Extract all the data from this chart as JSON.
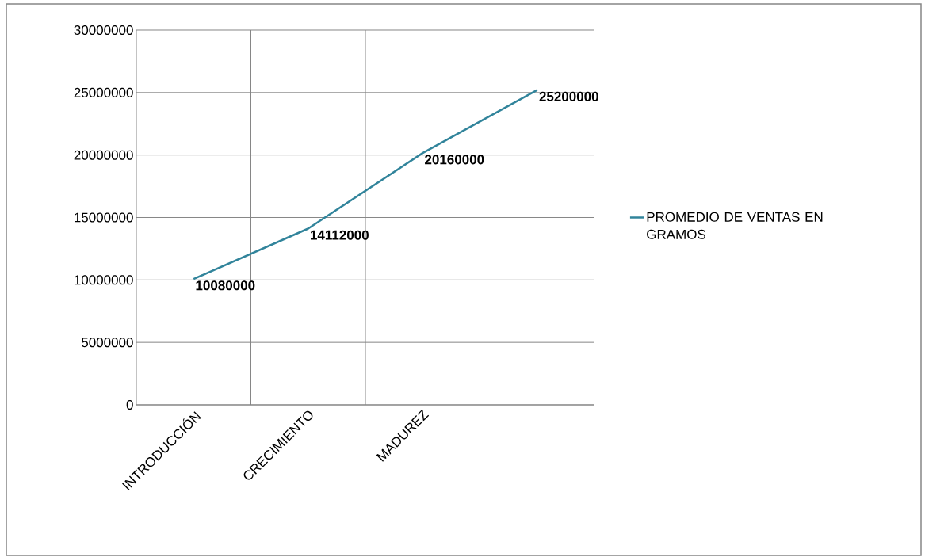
{
  "chart_data": {
    "type": "line",
    "categories": [
      "INTRODUCCIÓN",
      "CRECIMIENTO",
      "MADUREZ",
      null
    ],
    "series": [
      {
        "name": "PROMEDIO DE VENTAS EN GRAMOS",
        "color": "#31849b",
        "values": [
          10080000,
          14112000,
          20160000,
          25200000
        ]
      }
    ],
    "ylim": [
      0,
      30000000
    ],
    "yticks": [
      0,
      5000000,
      10000000,
      15000000,
      20000000,
      25000000,
      30000000
    ],
    "grid": true,
    "legend": "right",
    "marker": "none",
    "line_style": "solid",
    "data_labels": true
  }
}
